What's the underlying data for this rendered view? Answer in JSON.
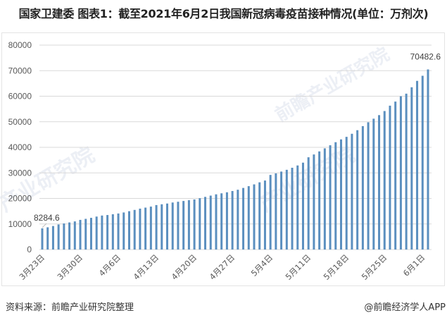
{
  "title": "国家卫建委 图表1：截至2021年6月2日我国新冠病毒疫苗接种情况(单位：万剂次)",
  "footer": {
    "source": "资料来源：前瞻产业研究院整理",
    "credit": "@前瞻经济学人APP"
  },
  "watermarks": [
    "前瞻产业研究院",
    "产业研究院"
  ],
  "colors": {
    "bar": "#5b8fbf",
    "grid": "#d9d9d9",
    "axis_text": "#595959"
  },
  "chart_data": {
    "type": "bar",
    "title": "截至2021年6月2日我国新冠病毒疫苗接种情况(单位：万剂次)",
    "xlabel": "",
    "ylabel": "万剂次",
    "ylim": [
      0,
      80000
    ],
    "yticks": [
      0,
      10000,
      20000,
      30000,
      40000,
      50000,
      60000,
      70000,
      80000
    ],
    "grid": true,
    "legend": "none",
    "x_tick_labels": [
      "3月23日",
      "3月30日",
      "4月6日",
      "4月13日",
      "4月20日",
      "4月27日",
      "5月4日",
      "5月11日",
      "5月18日",
      "5月25日",
      "6月1日"
    ],
    "annotations": [
      {
        "index": 0,
        "text": "8284.6"
      },
      {
        "index": 71,
        "text": "70482.6"
      }
    ],
    "categories": [
      "3月23日",
      "3月24日",
      "3月25日",
      "3月26日",
      "3月27日",
      "3月28日",
      "3月29日",
      "3月30日",
      "3月31日",
      "4月1日",
      "4月2日",
      "4月3日",
      "4月4日",
      "4月5日",
      "4月6日",
      "4月7日",
      "4月8日",
      "4月9日",
      "4月10日",
      "4月11日",
      "4月12日",
      "4月13日",
      "4月14日",
      "4月15日",
      "4月16日",
      "4月17日",
      "4月18日",
      "4月19日",
      "4月20日",
      "4月21日",
      "4月22日",
      "4月23日",
      "4月24日",
      "4月25日",
      "4月26日",
      "4月27日",
      "4月28日",
      "4月29日",
      "4月30日",
      "5月1日",
      "5月2日",
      "5月3日",
      "5月4日",
      "5月5日",
      "5月6日",
      "5月7日",
      "5月8日",
      "5月9日",
      "5月10日",
      "5月11日",
      "5月12日",
      "5月13日",
      "5月14日",
      "5月15日",
      "5月16日",
      "5月17日",
      "5月18日",
      "5月19日",
      "5月20日",
      "5月21日",
      "5月22日",
      "5月23日",
      "5月24日",
      "5月25日",
      "5月26日",
      "5月27日",
      "5月28日",
      "5月29日",
      "5月30日",
      "5月31日",
      "6月1日",
      "6月2日"
    ],
    "values": [
      8284.6,
      8700,
      9200,
      9800,
      10200,
      10600,
      11000,
      11600,
      12000,
      12400,
      12900,
      13300,
      13500,
      13800,
      14100,
      14500,
      15000,
      15500,
      16000,
      16400,
      16800,
      17400,
      17700,
      18000,
      18400,
      18700,
      19000,
      19300,
      19600,
      20100,
      20600,
      21100,
      21600,
      22000,
      22400,
      22900,
      23400,
      24100,
      24800,
      25500,
      26300,
      27000,
      29200,
      29800,
      30500,
      31200,
      32000,
      32900,
      34000,
      36100,
      37200,
      38400,
      39600,
      40800,
      42000,
      43100,
      44100,
      45300,
      46700,
      48300,
      49800,
      51200,
      52600,
      54200,
      56300,
      57900,
      60000,
      61000,
      63500,
      66000,
      68000,
      70482.6
    ]
  }
}
